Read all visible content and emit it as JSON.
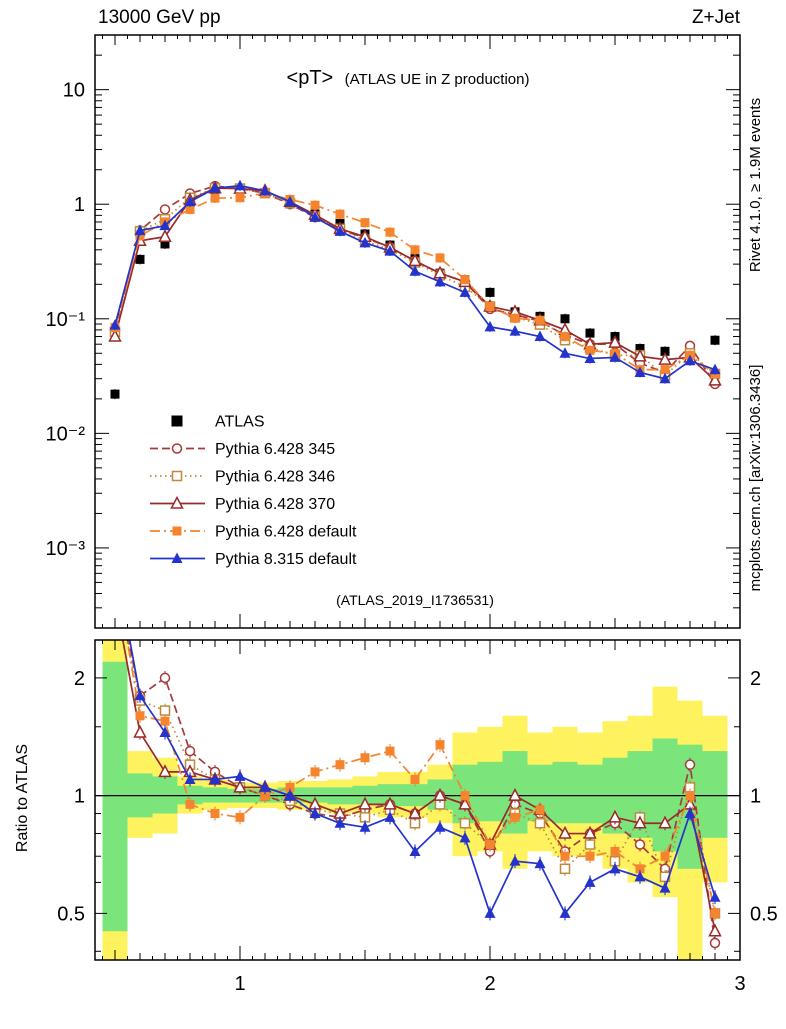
{
  "header": {
    "left": "13000 GeV pp",
    "right": "Z+Jet"
  },
  "title": {
    "main": "<pT>",
    "sub": "(ATLAS UE in Z production)"
  },
  "watermark": "(ATLAS_2019_I1736531)",
  "side_notes": {
    "top": "Rivet 4.1.0, ≥ 1.9M events",
    "bottom": "mcplots.cern.ch [arXiv:1306.3436]"
  },
  "ratio_label": "Ratio to ATLAS",
  "chart_data": {
    "type": "line",
    "x": [
      0.5,
      0.6,
      0.7,
      0.8,
      0.9,
      1.0,
      1.1,
      1.2,
      1.3,
      1.4,
      1.5,
      1.6,
      1.7,
      1.8,
      1.9,
      2.0,
      2.1,
      2.2,
      2.3,
      2.4,
      2.5,
      2.6,
      2.7,
      2.8,
      2.9
    ],
    "xlim": [
      0.42,
      3.0
    ],
    "x_ticks": [
      1,
      2,
      3
    ],
    "top_panel": {
      "yscale": "log",
      "ylim": [
        0.0002,
        30
      ],
      "y_ticks": [
        {
          "v": 10,
          "label": "10"
        },
        {
          "v": 1,
          "label": "1"
        },
        {
          "v": 0.1,
          "label": "10⁻¹"
        },
        {
          "v": 0.01,
          "label": "10⁻²"
        },
        {
          "v": 0.001,
          "label": "10⁻³"
        }
      ]
    },
    "ratio_panel": {
      "yscale": "log",
      "ylim": [
        0.38,
        2.5
      ],
      "reference": 1,
      "y_ticks": [
        {
          "v": 2,
          "label": "2"
        },
        {
          "v": 1,
          "label": "1"
        },
        {
          "v": 0.5,
          "label": "0.5"
        }
      ],
      "bands": {
        "yellow": {
          "color": "#fef35e",
          "lo": [
            0.38,
            0.78,
            0.8,
            0.9,
            0.92,
            0.93,
            0.93,
            0.92,
            0.92,
            0.9,
            0.9,
            0.88,
            0.88,
            0.85,
            0.7,
            0.72,
            0.65,
            0.72,
            0.7,
            0.7,
            0.65,
            0.6,
            0.55,
            0.38,
            0.6
          ],
          "hi": [
            2.5,
            1.3,
            1.25,
            1.12,
            1.1,
            1.08,
            1.08,
            1.09,
            1.09,
            1.1,
            1.12,
            1.15,
            1.15,
            1.2,
            1.45,
            1.5,
            1.6,
            1.45,
            1.5,
            1.45,
            1.55,
            1.6,
            1.9,
            1.75,
            1.6
          ]
        },
        "green": {
          "color": "#7be57b",
          "lo": [
            0.45,
            0.88,
            0.9,
            0.95,
            0.96,
            0.96,
            0.96,
            0.96,
            0.96,
            0.95,
            0.95,
            0.94,
            0.94,
            0.92,
            0.85,
            0.86,
            0.8,
            0.86,
            0.85,
            0.85,
            0.8,
            0.78,
            0.72,
            0.65,
            0.78
          ],
          "hi": [
            2.2,
            1.14,
            1.12,
            1.06,
            1.05,
            1.04,
            1.04,
            1.05,
            1.05,
            1.05,
            1.06,
            1.07,
            1.07,
            1.1,
            1.2,
            1.22,
            1.3,
            1.2,
            1.22,
            1.2,
            1.25,
            1.3,
            1.4,
            1.35,
            1.3
          ]
        }
      }
    },
    "series": [
      {
        "name": "ATLAS",
        "color": "#000000",
        "marker": "square-filled",
        "line": "none",
        "values": [
          0.022,
          0.33,
          0.45,
          0.95,
          1.25,
          1.3,
          1.25,
          1.05,
          0.85,
          0.68,
          0.55,
          0.44,
          0.36,
          0.25,
          0.22,
          0.17,
          0.115,
          0.105,
          0.1,
          0.075,
          0.07,
          0.055,
          0.052,
          0.048,
          0.065
        ]
      },
      {
        "name": "Pythia 6.428 345",
        "color": "#a63a3a",
        "marker": "circle-open",
        "line": "dashed",
        "values": [
          0.08,
          0.59,
          0.9,
          1.24,
          1.44,
          1.37,
          1.25,
          1.0,
          0.77,
          0.6,
          0.51,
          0.42,
          0.32,
          0.25,
          0.21,
          0.122,
          0.109,
          0.095,
          0.072,
          0.06,
          0.06,
          0.041,
          0.034,
          0.058,
          0.027
        ],
        "ratio": [
          3.6,
          1.8,
          2.0,
          1.3,
          1.15,
          1.05,
          1.0,
          0.95,
          0.9,
          0.88,
          0.92,
          0.95,
          0.9,
          1.0,
          0.95,
          0.72,
          0.95,
          0.9,
          0.72,
          0.8,
          0.85,
          0.75,
          0.65,
          1.2,
          0.42
        ]
      },
      {
        "name": "Pythia 6.428 346",
        "color": "#bb8a3c",
        "marker": "square-open",
        "line": "dotted",
        "values": [
          0.077,
          0.58,
          0.74,
          1.14,
          1.38,
          1.37,
          1.25,
          1.02,
          0.78,
          0.61,
          0.48,
          0.4,
          0.31,
          0.24,
          0.19,
          0.128,
          0.104,
          0.089,
          0.065,
          0.056,
          0.048,
          0.048,
          0.032,
          0.05,
          0.033
        ],
        "ratio": [
          3.5,
          1.75,
          1.65,
          1.2,
          1.1,
          1.05,
          1.0,
          0.97,
          0.92,
          0.9,
          0.88,
          0.92,
          0.85,
          0.95,
          0.85,
          0.75,
          0.9,
          0.85,
          0.65,
          0.75,
          0.68,
          0.88,
          0.62,
          1.05,
          0.5
        ]
      },
      {
        "name": "Pythia 6.428 370",
        "color": "#992a2a",
        "marker": "triangle-open",
        "line": "solid",
        "values": [
          0.07,
          0.48,
          0.52,
          1.09,
          1.38,
          1.37,
          1.31,
          1.05,
          0.81,
          0.61,
          0.52,
          0.42,
          0.32,
          0.25,
          0.21,
          0.128,
          0.115,
          0.097,
          0.08,
          0.06,
          0.062,
          0.047,
          0.044,
          0.046,
          0.029
        ],
        "ratio": [
          3.2,
          1.45,
          1.15,
          1.15,
          1.1,
          1.05,
          1.05,
          1.0,
          0.95,
          0.9,
          0.95,
          0.95,
          0.9,
          1.0,
          0.95,
          0.75,
          1.0,
          0.92,
          0.8,
          0.8,
          0.88,
          0.85,
          0.85,
          0.95,
          0.45
        ]
      },
      {
        "name": "Pythia 6.428 default",
        "color": "#f4842e",
        "marker": "square-filled",
        "line": "dashdot",
        "values": [
          0.084,
          0.53,
          0.7,
          0.9,
          1.13,
          1.14,
          1.25,
          1.1,
          0.98,
          0.82,
          0.69,
          0.57,
          0.4,
          0.34,
          0.22,
          0.128,
          0.101,
          0.097,
          0.07,
          0.053,
          0.05,
          0.036,
          0.036,
          0.048,
          0.033
        ],
        "ratio": [
          3.8,
          1.6,
          1.55,
          0.95,
          0.9,
          0.88,
          1.0,
          1.05,
          1.15,
          1.2,
          1.25,
          1.3,
          1.1,
          1.35,
          1.0,
          0.75,
          0.88,
          0.92,
          0.7,
          0.7,
          0.72,
          0.65,
          0.7,
          1.0,
          0.5
        ]
      },
      {
        "name": "Pythia 8.315 default",
        "color": "#2433cc",
        "marker": "triangle-filled",
        "line": "solid",
        "values": [
          0.088,
          0.59,
          0.65,
          1.05,
          1.38,
          1.45,
          1.31,
          1.05,
          0.77,
          0.58,
          0.46,
          0.39,
          0.26,
          0.21,
          0.17,
          0.085,
          0.078,
          0.07,
          0.05,
          0.045,
          0.046,
          0.034,
          0.03,
          0.043,
          0.036
        ],
        "ratio": [
          4.0,
          1.8,
          1.45,
          1.1,
          1.1,
          1.12,
          1.05,
          1.0,
          0.9,
          0.85,
          0.83,
          0.88,
          0.72,
          0.83,
          0.78,
          0.5,
          0.68,
          0.67,
          0.5,
          0.6,
          0.65,
          0.62,
          0.58,
          0.9,
          0.55
        ]
      }
    ]
  }
}
